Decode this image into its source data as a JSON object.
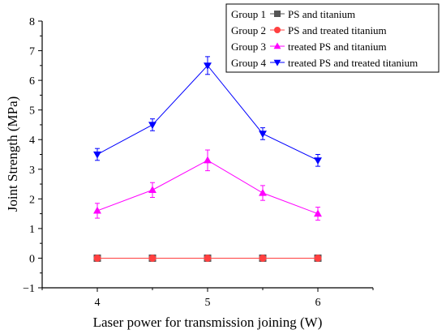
{
  "chart_data": {
    "type": "line",
    "xlabel": "Laser power for transmission joining (W)",
    "ylabel": "Joint Strength (MPa)",
    "x": [
      4,
      4.5,
      5,
      5.5,
      6
    ],
    "xlim": [
      3.5,
      6.5
    ],
    "ylim": [
      -1,
      8
    ],
    "xticks": [
      4,
      5,
      6
    ],
    "xtick_labels": [
      "4",
      "5",
      "6"
    ],
    "yticks": [
      -1,
      0,
      1,
      2,
      3,
      4,
      5,
      6,
      7,
      8
    ],
    "ytick_labels": [
      "−1",
      "0",
      "1",
      "2",
      "3",
      "4",
      "5",
      "6",
      "7",
      "8"
    ],
    "grid": false,
    "legend_position": "top-right",
    "series": [
      {
        "group": "Group 1",
        "name": "PS and titanium",
        "color": "#555555",
        "marker": "square",
        "values": [
          0,
          0,
          0,
          0,
          0
        ],
        "errors": [
          0.06,
          0.06,
          0.06,
          0.06,
          0.06
        ]
      },
      {
        "group": "Group 2",
        "name": "PS and treated titanium",
        "color": "#ff4040",
        "marker": "circle",
        "values": [
          0,
          0,
          0,
          0,
          0
        ],
        "errors": [
          0.06,
          0.06,
          0.06,
          0.06,
          0.06
        ]
      },
      {
        "group": "Group 3",
        "name": "treated PS and titanium",
        "color": "#ff00ff",
        "marker": "triangle-up",
        "values": [
          1.6,
          2.3,
          3.3,
          2.2,
          1.5
        ],
        "errors": [
          0.25,
          0.25,
          0.35,
          0.25,
          0.22
        ]
      },
      {
        "group": "Group 4",
        "name": "treated PS and treated titanium",
        "color": "#0000ff",
        "marker": "triangle-down",
        "values": [
          3.5,
          4.5,
          6.5,
          4.2,
          3.3
        ],
        "errors": [
          0.2,
          0.2,
          0.3,
          0.2,
          0.2
        ]
      }
    ]
  }
}
